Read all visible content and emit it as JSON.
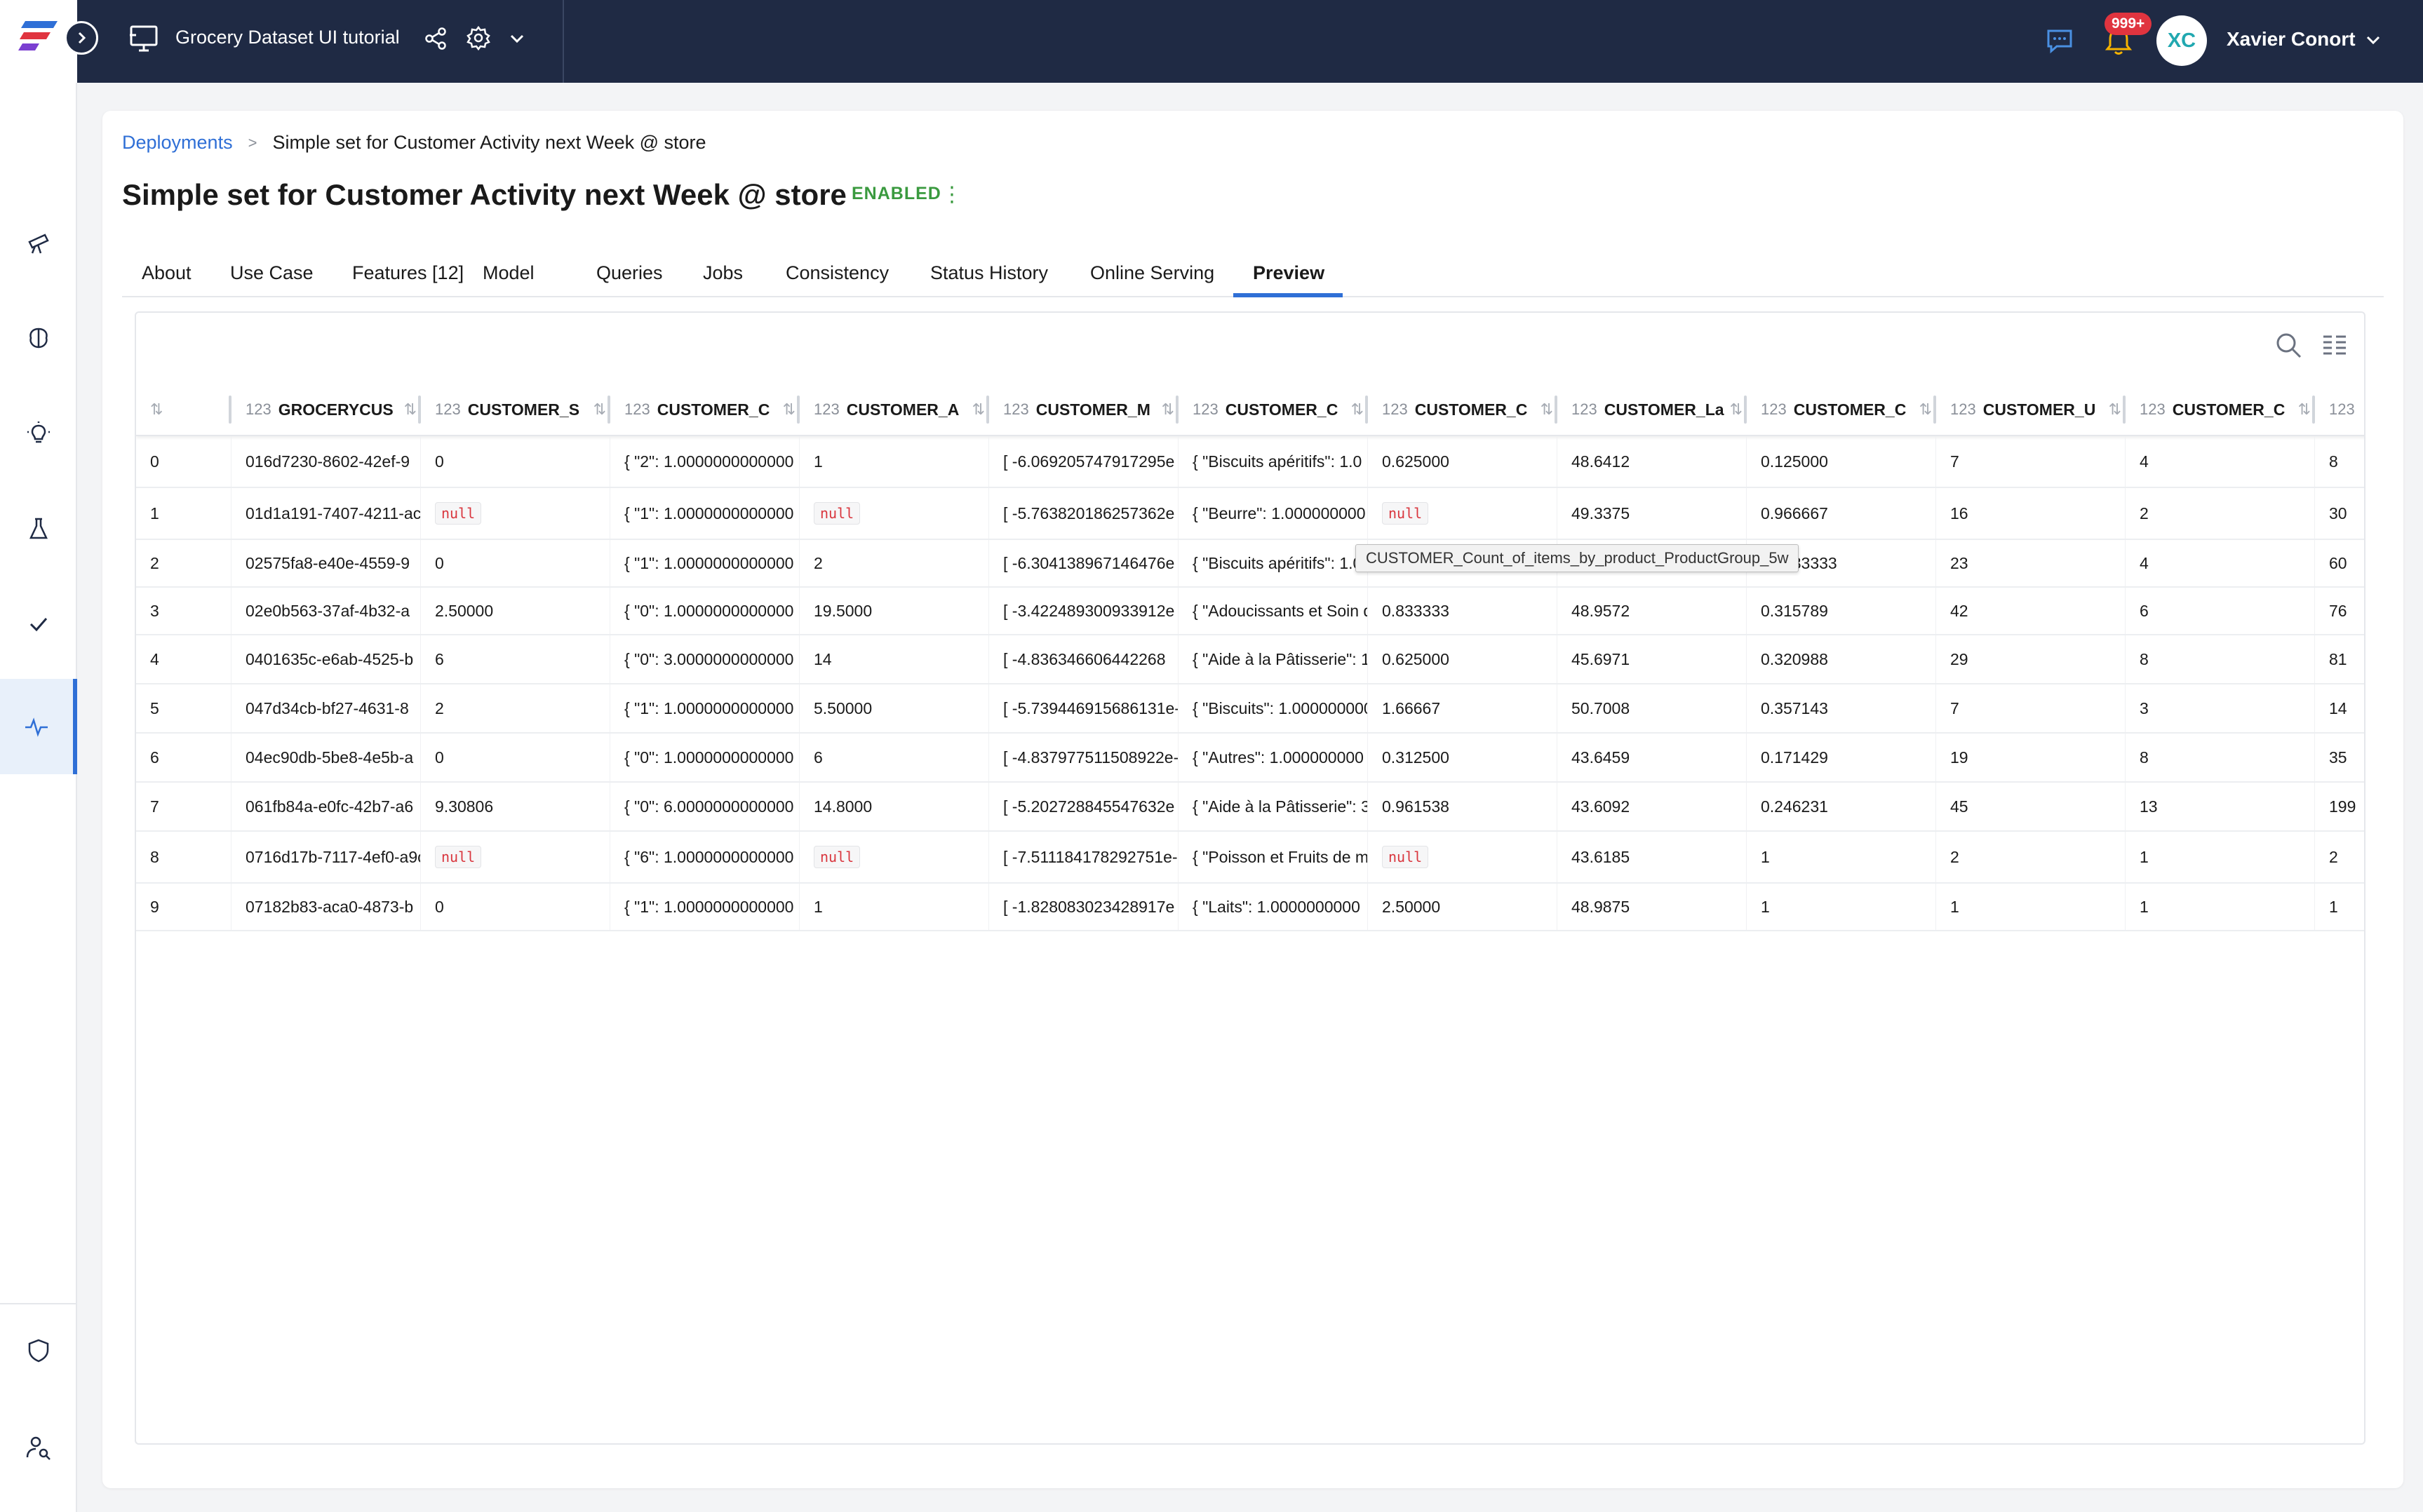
{
  "topbar": {
    "catalog_title": "Grocery Dataset UI tutorial",
    "notification_count": "999+",
    "user_initials": "XC",
    "user_name": "Xavier Conort"
  },
  "sidebar": {
    "icons": [
      "telescope-icon",
      "brain-icon",
      "lightbulb-icon",
      "flask-icon",
      "check-icon",
      "activity-icon",
      "shield-icon",
      "user-search-icon"
    ],
    "active": "activity-icon"
  },
  "breadcrumb": {
    "root": "Deployments",
    "separator": ">",
    "current": "Simple set for Customer Activity next Week @ store"
  },
  "page": {
    "title": "Simple set for Customer Activity next Week @ store",
    "status": "ENABLED",
    "status_menu": "⋮"
  },
  "tabs": [
    "About",
    "Use Case",
    "Features [12]",
    "Model",
    "Queries",
    "Jobs",
    "Consistency",
    "Status History",
    "Online Serving",
    "Preview"
  ],
  "active_tab": "Preview",
  "table": {
    "type_glyph": "123",
    "sort_glyph": "⇅",
    "columns": [
      "GROCERYCUS",
      "CUSTOMER_S",
      "CUSTOMER_C",
      "CUSTOMER_A",
      "CUSTOMER_M",
      "CUSTOMER_C",
      "CUSTOMER_C",
      "CUSTOMER_La",
      "CUSTOMER_C",
      "CUSTOMER_U",
      "CUSTOMER_C",
      ""
    ],
    "null_label": "null",
    "rows": [
      [
        "0",
        "016d7230-8602-42ef-9",
        "0",
        "{ \"2\": 1.0000000000000",
        "1",
        "[ -6.069205747917295e",
        "{ \"Biscuits apéritifs\": 1.0",
        "0.625000",
        "48.6412",
        "0.125000",
        "7",
        "4",
        "8"
      ],
      [
        "1",
        "01d1a191-7407-4211-ac2",
        null,
        "{ \"1\": 1.0000000000000",
        null,
        "[ -5.763820186257362e",
        "{ \"Beurre\": 1.000000000",
        null,
        "49.3375",
        "0.966667",
        "16",
        "2",
        "30"
      ],
      [
        "2",
        "02575fa8-e40e-4559-9",
        "0",
        "{ \"1\": 1.0000000000000",
        "2",
        "[ -6.304138967146476e",
        "{ \"Biscuits apéritifs\": 1.0",
        "0.625000",
        "44.0305",
        "0.0333333",
        "23",
        "4",
        "60"
      ],
      [
        "3",
        "02e0b563-37af-4b32-a",
        "2.50000",
        "{ \"0\": 1.0000000000000",
        "19.5000",
        "[ -3.422489300933912e",
        "{ \"Adoucissants et Soin d",
        "0.833333",
        "48.9572",
        "0.315789",
        "42",
        "6",
        "76"
      ],
      [
        "4",
        "0401635c-e6ab-4525-b",
        "6",
        "{ \"0\": 3.0000000000000",
        "14",
        "[ -4.836346606442268",
        "{ \"Aide à la Pâtisserie\": 1",
        "0.625000",
        "45.6971",
        "0.320988",
        "29",
        "8",
        "81"
      ],
      [
        "5",
        "047d34cb-bf27-4631-8",
        "2",
        "{ \"1\": 1.0000000000000",
        "5.50000",
        "[ -5.739446915686131e-",
        "{ \"Biscuits\": 1.000000000",
        "1.66667",
        "50.7008",
        "0.357143",
        "7",
        "3",
        "14"
      ],
      [
        "6",
        "04ec90db-5be8-4e5b-a",
        "0",
        "{ \"0\": 1.0000000000000",
        "6",
        "[ -4.837977511508922e-",
        "{ \"Autres\": 1.000000000",
        "0.312500",
        "43.6459",
        "0.171429",
        "19",
        "8",
        "35"
      ],
      [
        "7",
        "061fb84a-e0fc-42b7-a6",
        "9.30806",
        "{ \"0\": 6.0000000000000",
        "14.8000",
        "[ -5.202728845547632e",
        "{ \"Aide à la Pâtisserie\": 3",
        "0.961538",
        "43.6092",
        "0.246231",
        "45",
        "13",
        "199"
      ],
      [
        "8",
        "0716d17b-7117-4ef0-a9c",
        null,
        "{ \"6\": 1.0000000000000",
        null,
        "[ -7.511184178292751e-0",
        "{ \"Poisson et Fruits de m",
        null,
        "43.6185",
        "1",
        "2",
        "1",
        "2"
      ],
      [
        "9",
        "07182b83-aca0-4873-b",
        "0",
        "{ \"1\": 1.0000000000000",
        "1",
        "[ -1.828083023428917e",
        "{ \"Laits\": 1.0000000000",
        "2.50000",
        "48.9875",
        "1",
        "1",
        "1",
        "1"
      ]
    ]
  },
  "tooltip": "CUSTOMER_Count_of_items_by_product_ProductGroup_5w"
}
